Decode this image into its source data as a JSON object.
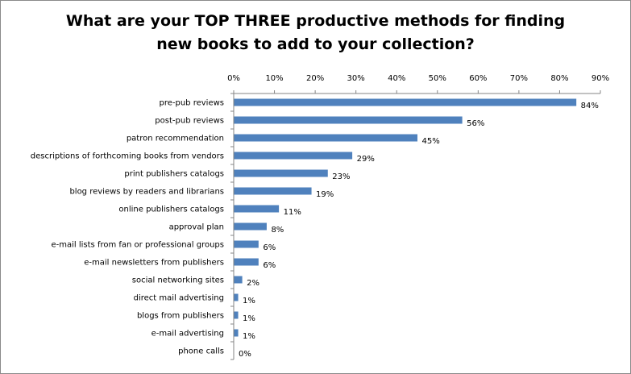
{
  "colors": {
    "bar": "#4f81bd",
    "axis": "#868686",
    "grid": "#868686"
  },
  "chart_data": {
    "type": "bar",
    "orientation": "horizontal",
    "title_lines": [
      "What are your TOP THREE productive methods for finding",
      "new books to add to your collection?"
    ],
    "title": "What are your TOP THREE productive methods for finding new books to add to your collection?",
    "xlabel": "",
    "ylabel": "",
    "xaxis_position": "top",
    "xlim": [
      0,
      90
    ],
    "x_ticks": [
      0,
      10,
      20,
      30,
      40,
      50,
      60,
      70,
      80,
      90
    ],
    "x_tick_labels": [
      "0%",
      "10%",
      "20%",
      "30%",
      "40%",
      "50%",
      "60%",
      "70%",
      "80%",
      "90%"
    ],
    "gridlines": false,
    "legend": "none",
    "categories": [
      "pre-pub reviews",
      "post-pub reviews",
      "patron recommendation",
      "descriptions of forthcoming books from vendors",
      "print publishers catalogs",
      "blog reviews by readers and librarians",
      "online publishers catalogs",
      "approval plan",
      "e-mail lists from fan or professional groups",
      "e-mail newsletters from publishers",
      "social networking sites",
      "direct mail advertising",
      "blogs from publishers",
      "e-mail advertising",
      "phone calls"
    ],
    "values": [
      84,
      56,
      45,
      29,
      23,
      19,
      11,
      8,
      6,
      6,
      2,
      1,
      1,
      1,
      0
    ],
    "value_labels": [
      "84%",
      "56%",
      "45%",
      "29%",
      "23%",
      "19%",
      "11%",
      "8%",
      "6%",
      "6%",
      "2%",
      "1%",
      "1%",
      "1%",
      "0%"
    ]
  }
}
